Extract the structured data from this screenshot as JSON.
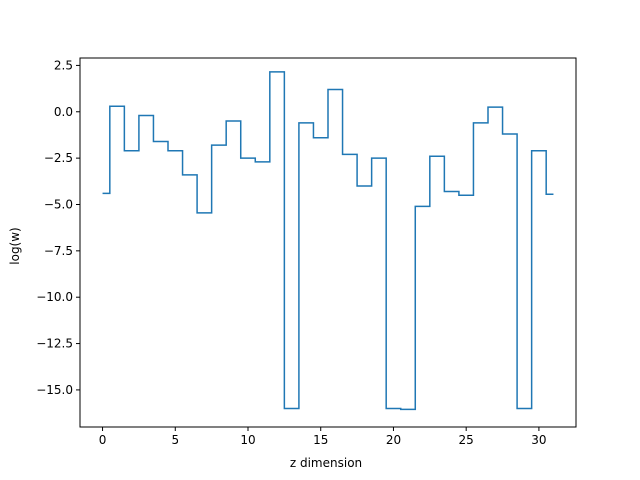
{
  "chart_data": {
    "type": "line",
    "drawstyle": "steps-mid",
    "title": "",
    "xlabel": "z dimension",
    "ylabel": "log(w)",
    "xlim": [
      -1.55,
      32.55
    ],
    "ylim": [
      -17.0,
      2.9
    ],
    "xticks": [
      0,
      5,
      10,
      15,
      20,
      25,
      30
    ],
    "xtick_labels": [
      "0",
      "5",
      "10",
      "15",
      "20",
      "25",
      "30"
    ],
    "yticks": [
      2.5,
      0.0,
      -2.5,
      -5.0,
      -7.5,
      -10.0,
      -12.5,
      -15.0
    ],
    "ytick_labels": [
      "2.5",
      "0.0",
      "−2.5",
      "−5.0",
      "−7.5",
      "−10.0",
      "−12.5",
      "−15.0"
    ],
    "grid": false,
    "series": [
      {
        "color": "#1f77b4",
        "x": [
          0,
          1,
          2,
          3,
          4,
          5,
          6,
          7,
          8,
          9,
          10,
          11,
          12,
          13,
          14,
          15,
          16,
          17,
          18,
          19,
          20,
          21,
          22,
          23,
          24,
          25,
          26,
          27,
          28,
          29,
          30,
          31
        ],
        "y": [
          -4.4,
          0.3,
          -2.1,
          -0.2,
          -1.6,
          -2.1,
          -3.4,
          -5.45,
          -1.8,
          -0.5,
          -2.5,
          -2.7,
          2.15,
          -16.0,
          -0.6,
          -1.4,
          1.2,
          -2.3,
          -4.0,
          -2.5,
          -16.0,
          -16.05,
          -5.1,
          -2.4,
          -4.3,
          -4.5,
          -0.6,
          0.25,
          -1.2,
          -16.0,
          -2.1,
          -4.45
        ]
      }
    ]
  }
}
